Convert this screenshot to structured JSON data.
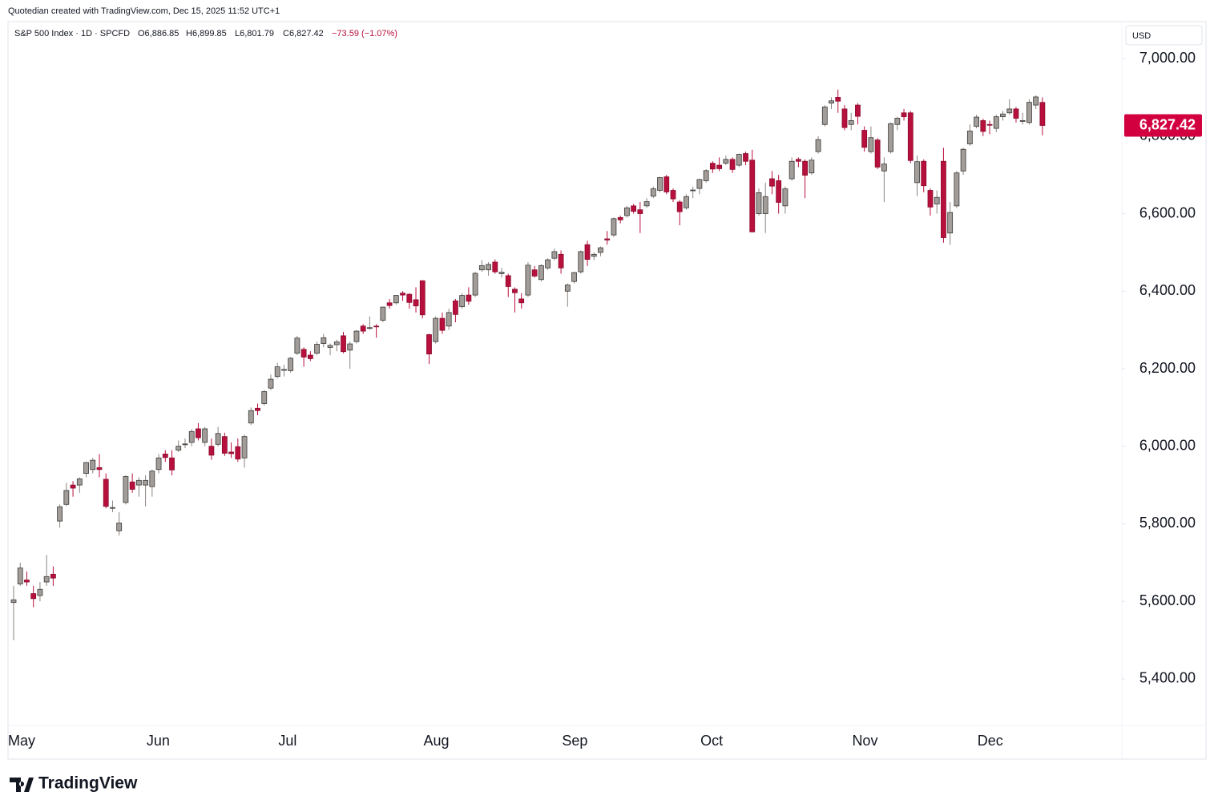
{
  "watermark": "Quotedian created with TradingView.com, Dec 15, 2025 11:52 UTC+1",
  "brand": "TradingView",
  "chart_data": {
    "type": "candlestick",
    "header": {
      "symbol": "S&P 500 Index · 1D · SPCFD",
      "open": "O6,886.85",
      "high": "H6,899.85",
      "low": "L6,801.79",
      "close": "C6,827.42",
      "change": "−73.59 (−1.07%)"
    },
    "currency": "USD",
    "last_price_label": "6,827.42",
    "up_color": "#a29d98",
    "down_color": "#b8103d",
    "categories": [
      "May",
      null,
      null,
      null,
      null,
      null,
      null,
      null,
      null,
      null,
      null,
      null,
      null,
      null,
      null,
      null,
      null,
      null,
      null,
      null,
      null,
      "Jun",
      null,
      null,
      null,
      null,
      null,
      null,
      null,
      null,
      null,
      null,
      null,
      null,
      null,
      null,
      null,
      null,
      null,
      null,
      null,
      "Jul",
      null,
      null,
      null,
      null,
      null,
      null,
      null,
      null,
      null,
      null,
      null,
      null,
      null,
      null,
      null,
      null,
      null,
      null,
      null,
      null,
      null,
      "Aug",
      null,
      null,
      null,
      null,
      null,
      null,
      null,
      null,
      null,
      null,
      null,
      null,
      null,
      null,
      null,
      null,
      null,
      null,
      null,
      null,
      "Sep",
      null,
      null,
      null,
      null,
      null,
      null,
      null,
      null,
      null,
      null,
      null,
      null,
      null,
      null,
      null,
      null,
      null,
      null,
      null,
      null,
      "Oct",
      null,
      null,
      null,
      null,
      null,
      null,
      null,
      null,
      null,
      null,
      null,
      null,
      null,
      null,
      null,
      null,
      null,
      null,
      null,
      null,
      null,
      null,
      "Nov",
      null,
      null,
      null,
      null,
      null,
      null,
      null,
      null,
      null,
      null,
      null,
      null,
      null,
      null,
      null,
      null,
      null,
      null,
      "Dec",
      null,
      null,
      null,
      null,
      null,
      null,
      null,
      null,
      null
    ],
    "open": [
      5597,
      5645,
      5655,
      5620,
      5615,
      5650,
      5670,
      5807,
      5850,
      5900,
      5900,
      5930,
      5940,
      5945,
      5915,
      5840,
      5782,
      5855,
      5908,
      5900,
      5900,
      5896,
      5940,
      5980,
      5970,
      5990,
      6005,
      6010,
      6045,
      6010,
      6000,
      6005,
      6025,
      5985,
      5999,
      5970,
      6060,
      6098,
      6110,
      6150,
      6180,
      6198,
      6195,
      6240,
      6250,
      6235,
      6240,
      6265,
      6255,
      6262,
      6285,
      6248,
      6270,
      6310,
      6305,
      6310,
      6325,
      6370,
      6370,
      6395,
      6392,
      6378,
      6427,
      6288,
      6270,
      6330,
      6310,
      6375,
      6360,
      6390,
      6390,
      6455,
      6455,
      6475,
      6445,
      6440,
      6405,
      6380,
      6390,
      6455,
      6430,
      6460,
      6485,
      6495,
      6400,
      6425,
      6450,
      6520,
      6490,
      6500,
      6535,
      6545,
      6590,
      6595,
      6620,
      6610,
      6620,
      6645,
      6660,
      6695,
      6660,
      6630,
      6615,
      6660,
      6665,
      6685,
      6730,
      6725,
      6730,
      6740,
      6725,
      6755,
      6738,
      6600,
      6600,
      6690,
      6685,
      6620,
      6690,
      6740,
      6735,
      6705,
      6760,
      6830,
      6885,
      6900,
      6870,
      6830,
      6880,
      6815,
      6760,
      6790,
      6710,
      6760,
      6830,
      6860,
      6860,
      6680,
      6735,
      6660,
      6625,
      6735,
      6550,
      6620,
      6710,
      6780,
      6825,
      6840,
      6830,
      6820,
      6850,
      6860,
      6870,
      6840,
      6835,
      6880,
      6886.85
    ],
    "high": [
      5640,
      5700,
      5677,
      5640,
      5650,
      5720,
      5690,
      5850,
      5906,
      5910,
      5920,
      5960,
      5970,
      5980,
      5930,
      5860,
      5830,
      5925,
      5930,
      5920,
      5925,
      5940,
      5980,
      5990,
      5990,
      6015,
      6020,
      6045,
      6060,
      6050,
      6020,
      6050,
      6035,
      6010,
      6020,
      6030,
      6100,
      6110,
      6145,
      6185,
      6215,
      6210,
      6230,
      6285,
      6255,
      6245,
      6270,
      6290,
      6265,
      6275,
      6295,
      6270,
      6300,
      6315,
      6335,
      6315,
      6360,
      6380,
      6390,
      6400,
      6395,
      6410,
      6428,
      6290,
      6335,
      6345,
      6355,
      6380,
      6395,
      6410,
      6450,
      6480,
      6475,
      6482,
      6460,
      6445,
      6410,
      6395,
      6475,
      6465,
      6470,
      6485,
      6510,
      6505,
      6420,
      6450,
      6505,
      6530,
      6500,
      6515,
      6555,
      6590,
      6595,
      6620,
      6625,
      6630,
      6640,
      6670,
      6695,
      6700,
      6665,
      6635,
      6650,
      6670,
      6690,
      6715,
      6735,
      6745,
      6750,
      6745,
      6755,
      6760,
      6765,
      6665,
      6680,
      6710,
      6700,
      6670,
      6745,
      6745,
      6740,
      6745,
      6800,
      6880,
      6900,
      6920,
      6880,
      6860,
      6885,
      6825,
      6825,
      6795,
      6745,
      6835,
      6850,
      6870,
      6865,
      6750,
      6740,
      6665,
      6660,
      6770,
      6630,
      6710,
      6770,
      6830,
      6855,
      6845,
      6840,
      6855,
      6865,
      6895,
      6875,
      6860,
      6895,
      6905,
      6899.85
    ],
    "low": [
      5500,
      5640,
      5640,
      5585,
      5600,
      5640,
      5640,
      5790,
      5846,
      5870,
      5880,
      5920,
      5930,
      5920,
      5840,
      5830,
      5770,
      5850,
      5880,
      5870,
      5845,
      5870,
      5930,
      5960,
      5925,
      5985,
      5995,
      6000,
      6015,
      6000,
      5965,
      6000,
      5975,
      5970,
      5960,
      5945,
      6055,
      6080,
      6105,
      6145,
      6175,
      6180,
      6190,
      6235,
      6205,
      6220,
      6235,
      6255,
      6235,
      6245,
      6240,
      6200,
      6265,
      6290,
      6300,
      6280,
      6320,
      6355,
      6365,
      6375,
      6355,
      6345,
      6330,
      6212,
      6265,
      6290,
      6300,
      6320,
      6355,
      6365,
      6385,
      6450,
      6440,
      6445,
      6435,
      6385,
      6345,
      6355,
      6385,
      6435,
      6425,
      6455,
      6480,
      6445,
      6360,
      6420,
      6445,
      6465,
      6480,
      6490,
      6520,
      6540,
      6575,
      6590,
      6600,
      6550,
      6615,
      6640,
      6655,
      6650,
      6630,
      6570,
      6610,
      6640,
      6650,
      6680,
      6705,
      6710,
      6725,
      6705,
      6720,
      6725,
      6552,
      6595,
      6550,
      6650,
      6600,
      6600,
      6685,
      6720,
      6640,
      6700,
      6755,
      6825,
      6870,
      6860,
      6815,
      6815,
      6830,
      6760,
      6755,
      6715,
      6630,
      6755,
      6815,
      6840,
      6730,
      6645,
      6655,
      6595,
      6600,
      6525,
      6520,
      6615,
      6700,
      6775,
      6820,
      6800,
      6805,
      6810,
      6840,
      6855,
      6835,
      6830,
      6830,
      6870,
      6801.79
    ],
    "close": [
      5604,
      5686,
      5650,
      5607,
      5631,
      5664,
      5660,
      5844,
      5886,
      5892,
      5916,
      5958,
      5964,
      5940,
      5845,
      5842,
      5802,
      5922,
      5889,
      5912,
      5912,
      5936,
      5970,
      5971,
      5939,
      6000,
      6006,
      6038,
      6022,
      6045,
      5977,
      6033,
      5982,
      5981,
      5967,
      6025,
      6092,
      6092,
      6141,
      6173,
      6205,
      6198,
      6227,
      6279,
      6230,
      6226,
      6263,
      6280,
      6260,
      6269,
      6244,
      6264,
      6297,
      6297,
      6306,
      6309,
      6359,
      6363,
      6389,
      6390,
      6371,
      6362,
      6339,
      6238,
      6330,
      6299,
      6345,
      6340,
      6389,
      6374,
      6446,
      6466,
      6469,
      6450,
      6449,
      6412,
      6396,
      6370,
      6467,
      6439,
      6466,
      6481,
      6502,
      6460,
      6416,
      6448,
      6502,
      6482,
      6495,
      6512,
      6532,
      6587,
      6584,
      6615,
      6606,
      6600,
      6631,
      6664,
      6693,
      6656,
      6638,
      6605,
      6644,
      6661,
      6688,
      6711,
      6715,
      6716,
      6740,
      6714,
      6753,
      6735,
      6553,
      6654,
      6644,
      6671,
      6629,
      6664,
      6735,
      6735,
      6699,
      6738,
      6791,
      6875,
      6891,
      6890,
      6822,
      6840,
      6851,
      6771,
      6796,
      6720,
      6728,
      6832,
      6846,
      6850,
      6737,
      6734,
      6672,
      6617,
      6642,
      6538,
      6603,
      6705,
      6766,
      6813,
      6849,
      6812,
      6829,
      6850,
      6857,
      6870,
      6846,
      6840,
      6887,
      6901,
      6827.42
    ],
    "ylim": [
      5280,
      7089
    ],
    "yticks": [
      {
        "value": 5400,
        "label": "5,400.00"
      },
      {
        "value": 5600,
        "label": "5,600.00"
      },
      {
        "value": 5800,
        "label": "5,800.00"
      },
      {
        "value": 6000,
        "label": "6,000.00"
      },
      {
        "value": 6200,
        "label": "6,200.00"
      },
      {
        "value": 6400,
        "label": "6,400.00"
      },
      {
        "value": 6600,
        "label": "6,600.00"
      },
      {
        "value": 6800,
        "label": "6,800.00"
      },
      {
        "value": 7000,
        "label": "7,000.00"
      }
    ],
    "grid": false
  }
}
